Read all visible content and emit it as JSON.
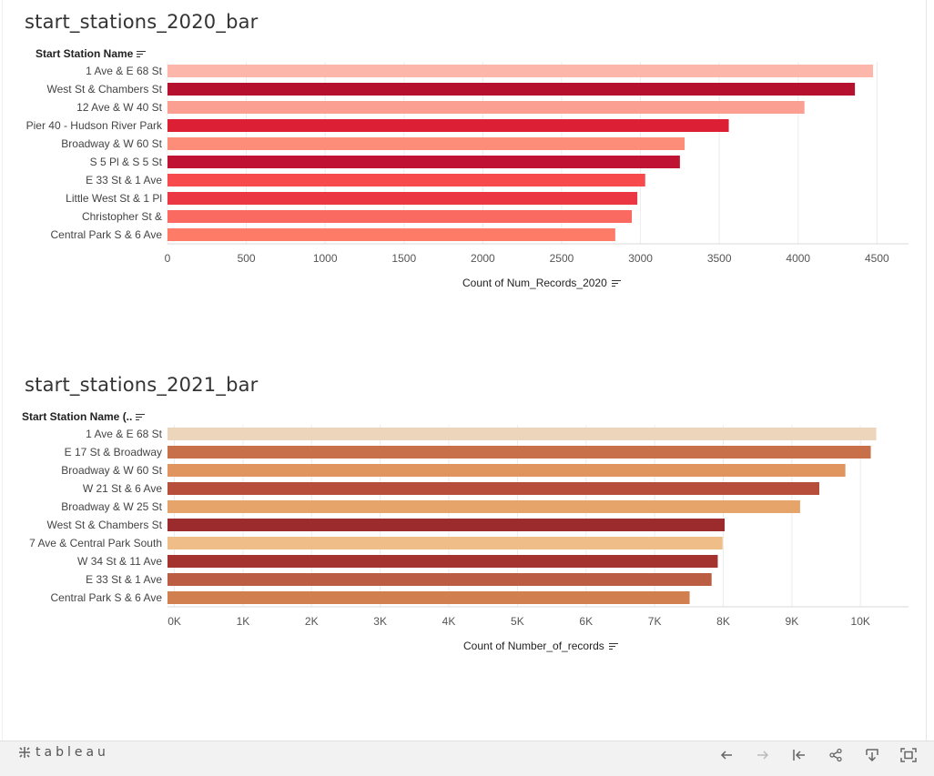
{
  "charts": [
    {
      "title": "start_stations_2020_bar",
      "row_header": "Start Station Name",
      "axis_title": "Count of Num_Records_2020"
    },
    {
      "title": "start_stations_2021_bar",
      "row_header": "Start Station Name (..",
      "axis_title": "Count of Number_of_records"
    }
  ],
  "chart_data": [
    {
      "type": "bar",
      "orientation": "horizontal",
      "title": "start_stations_2020_bar",
      "ylabel": "Start Station Name",
      "xlabel": "Count of Num_Records_2020",
      "categories": [
        "1 Ave & E 68 St",
        "West St & Chambers St",
        "12 Ave & W 40 St",
        "Pier 40 - Hudson River Park",
        "Broadway & W 60 St",
        "S 5 Pl & S 5 St",
        "E 33 St & 1 Ave",
        "Little West St & 1 Pl",
        "Christopher St &",
        "Central Park S & 6 Ave"
      ],
      "values": [
        4475,
        4360,
        4040,
        3560,
        3280,
        3250,
        3030,
        2980,
        2945,
        2840
      ],
      "colors": [
        "#fcb6aa",
        "#b5112e",
        "#fb9f92",
        "#dd1f36",
        "#fd8d78",
        "#c01233",
        "#f64a4c",
        "#ea3743",
        "#fa6a60",
        "#fe7b67"
      ],
      "xlim": [
        0,
        4700
      ],
      "xticks": [
        0,
        500,
        1000,
        1500,
        2000,
        2500,
        3000,
        3500,
        4000,
        4500
      ],
      "xtick_labels": [
        "0",
        "500",
        "1000",
        "1500",
        "2000",
        "2500",
        "3000",
        "3500",
        "4000",
        "4500"
      ],
      "grid": true
    },
    {
      "type": "bar",
      "orientation": "horizontal",
      "title": "start_stations_2021_bar",
      "ylabel": "Start Station Name (..",
      "xlabel": "Count of Number_of_records",
      "categories": [
        "1 Ave & E 68 St",
        "E 17 St & Broadway",
        "Broadway & W 60 St",
        "W 21 St & 6 Ave",
        "Broadway & W 25 St",
        "West St & Chambers St",
        "7 Ave & Central Park South",
        "W 34 St & 11 Ave",
        "E 33 St & 1 Ave",
        "Central Park S & 6 Ave"
      ],
      "values": [
        10230,
        10150,
        9780,
        9400,
        9120,
        8020,
        7990,
        7920,
        7830,
        7510
      ],
      "colors": [
        "#ecd5bb",
        "#c8704a",
        "#e0955f",
        "#b74e3b",
        "#e6a36a",
        "#9c2b2e",
        "#eebd88",
        "#a4322f",
        "#bb5d42",
        "#d27f4f"
      ],
      "xlim": [
        -100,
        10700
      ],
      "xticks": [
        0,
        1000,
        2000,
        3000,
        4000,
        5000,
        6000,
        7000,
        8000,
        9000,
        10000
      ],
      "xtick_labels": [
        "0K",
        "1K",
        "2K",
        "3K",
        "4K",
        "5K",
        "6K",
        "7K",
        "8K",
        "9K",
        "10K"
      ],
      "grid": true
    }
  ],
  "footer": {
    "logo_text": "tableau",
    "buttons": [
      "undo-icon",
      "redo-icon",
      "revert-icon",
      "share-icon",
      "download-icon",
      "fullscreen-icon"
    ]
  }
}
